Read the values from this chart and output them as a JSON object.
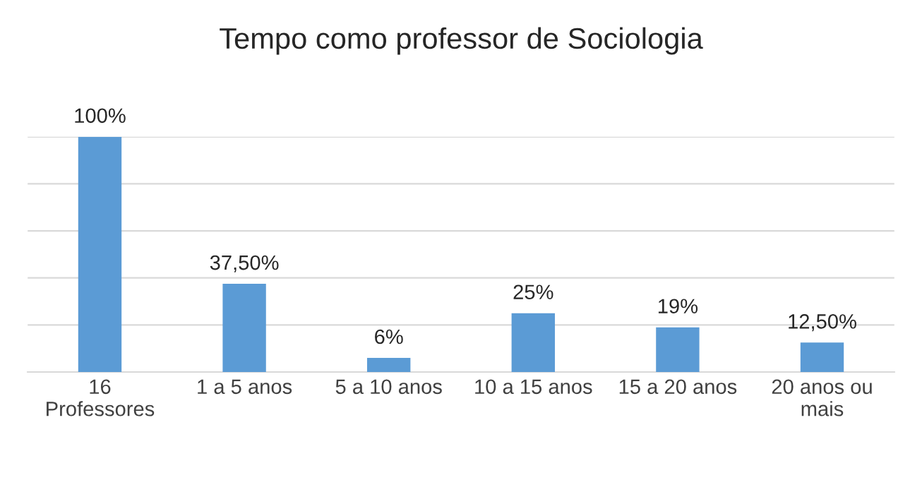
{
  "chart_data": {
    "type": "bar",
    "title": "Tempo como professor de Sociologia",
    "categories": [
      "16\nProfessores",
      "1 a 5 anos",
      "5 a 10 anos",
      "10 a 15 anos",
      "15 a 20 anos",
      "20 anos ou\nmais"
    ],
    "values": [
      100,
      37.5,
      6,
      25,
      19,
      12.5
    ],
    "value_labels": [
      "100%",
      "37,50%",
      "6%",
      "25%",
      "19%",
      "12,50%"
    ],
    "color": "#5b9bd5",
    "ylim": [
      0,
      100
    ],
    "yticks": [
      {
        "value": 0,
        "label": null
      },
      {
        "value": 20,
        "label": null
      },
      {
        "value": 40,
        "label": null
      },
      {
        "value": 60,
        "label": null
      },
      {
        "value": 80,
        "label": null
      },
      {
        "value": 100,
        "label": null
      }
    ],
    "grid": "y",
    "tick_labels": "x",
    "legend": false
  }
}
